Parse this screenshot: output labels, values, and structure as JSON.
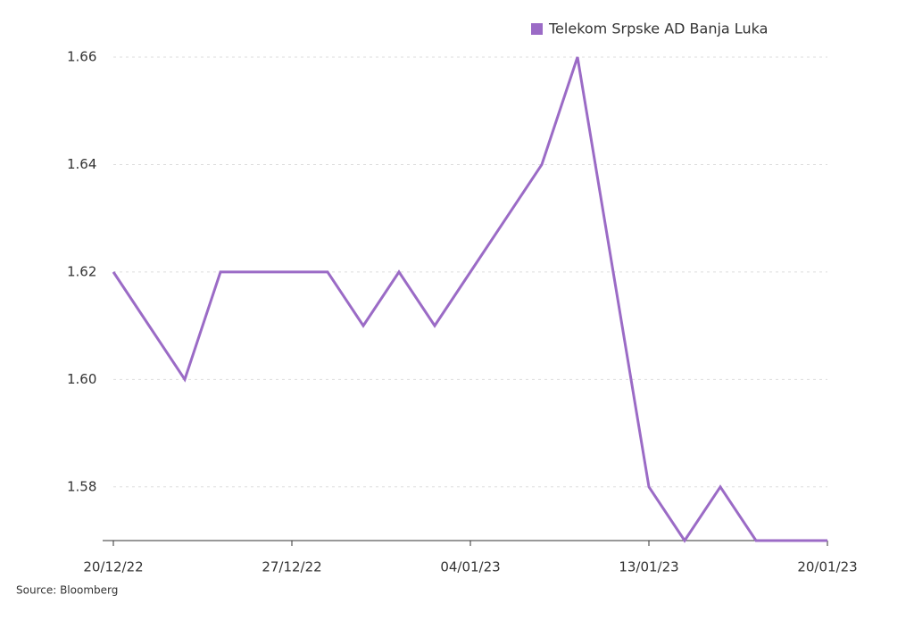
{
  "chart_data": {
    "type": "line",
    "categories": [
      "20/12/22",
      null,
      null,
      null,
      null,
      "27/12/22",
      null,
      null,
      null,
      null,
      "04/01/23",
      null,
      null,
      null,
      null,
      "13/01/23",
      null,
      null,
      null,
      null,
      "20/01/23"
    ],
    "series": [
      {
        "name": "Telekom Srpske AD Banja Luka",
        "color": "#9b6bc6",
        "values": [
          1.62,
          1.61,
          1.6,
          1.62,
          1.62,
          1.62,
          1.62,
          1.61,
          1.62,
          1.61,
          1.62,
          1.63,
          1.64,
          1.66,
          1.62,
          1.58,
          1.57,
          1.58,
          1.57,
          1.57,
          1.57
        ]
      }
    ],
    "ylim": [
      1.57,
      1.66
    ],
    "yticks": [
      1.58,
      {
        "value": 1.6,
        "label": "1.60"
      },
      1.62,
      1.64,
      1.66
    ],
    "grid": true,
    "legend": "top-right",
    "source": "Source: Bloomberg"
  }
}
